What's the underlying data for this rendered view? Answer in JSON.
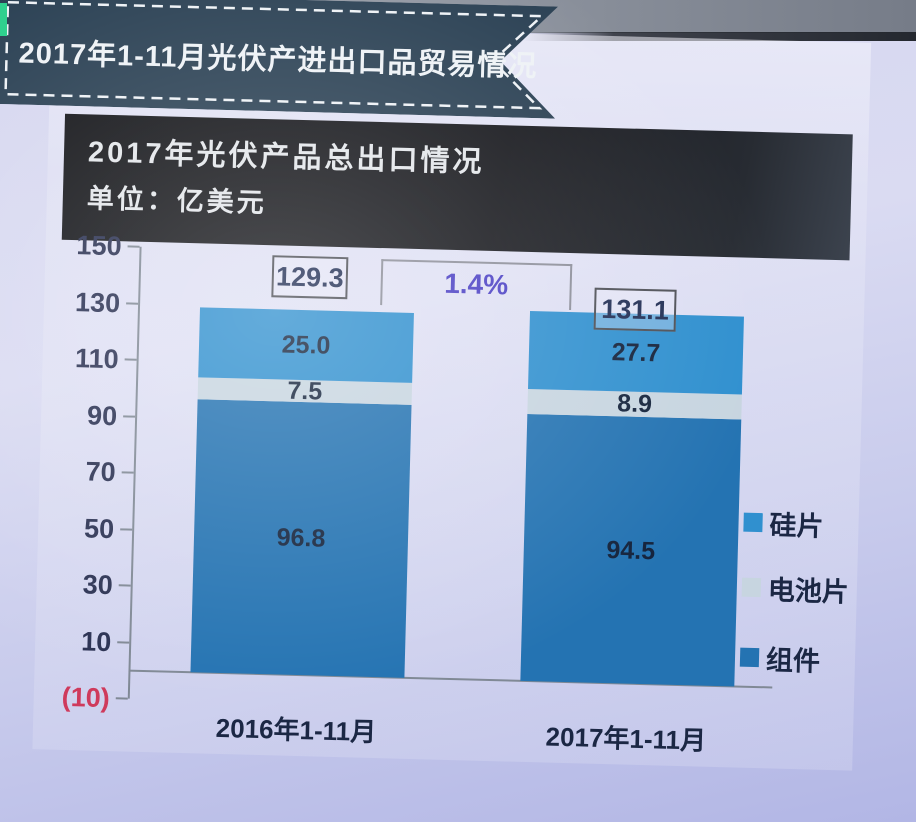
{
  "banner": {
    "title": "2017年1-11月光伏产进出口品贸易情况"
  },
  "header": {
    "title": "2017年光伏产品总出口情况",
    "unit": "单位：亿美元"
  },
  "chart_data": {
    "type": "bar",
    "stacked": true,
    "title": "2017年光伏产品总出口情况",
    "unit": "亿美元",
    "categories": [
      "2016年1-11月",
      "2017年1-11月"
    ],
    "series": [
      {
        "name": "组件",
        "slug": "module",
        "color": "#2473b2",
        "values": [
          96.8,
          94.5
        ]
      },
      {
        "name": "电池片",
        "slug": "solar-cell",
        "color": "#c7d5e0",
        "values": [
          7.5,
          8.9
        ]
      },
      {
        "name": "硅片",
        "slug": "silicon-wafer",
        "color": "#3090cf",
        "values": [
          25.0,
          27.7
        ]
      }
    ],
    "totals": [
      "129.3",
      "131.1"
    ],
    "growth_label": "1.4%",
    "y_ticks": [
      {
        "label": "150",
        "value": 150
      },
      {
        "label": "130",
        "value": 130
      },
      {
        "label": "110",
        "value": 110
      },
      {
        "label": "90",
        "value": 90
      },
      {
        "label": "70",
        "value": 70
      },
      {
        "label": "50",
        "value": 50
      },
      {
        "label": "30",
        "value": 30
      },
      {
        "label": "10",
        "value": 10
      },
      {
        "label": "(10)",
        "value": -10
      }
    ],
    "ylim": [
      -10,
      150
    ],
    "grid": false,
    "legend_order": [
      "硅片",
      "电池片",
      "组件"
    ],
    "legend_position": "right",
    "colors": {
      "banner_bg": "#2b4154",
      "header_bg": "#17181d",
      "growth_text": "#4a3fc4",
      "negative_tick": "#cf3a5c",
      "axis": "#808995"
    }
  }
}
